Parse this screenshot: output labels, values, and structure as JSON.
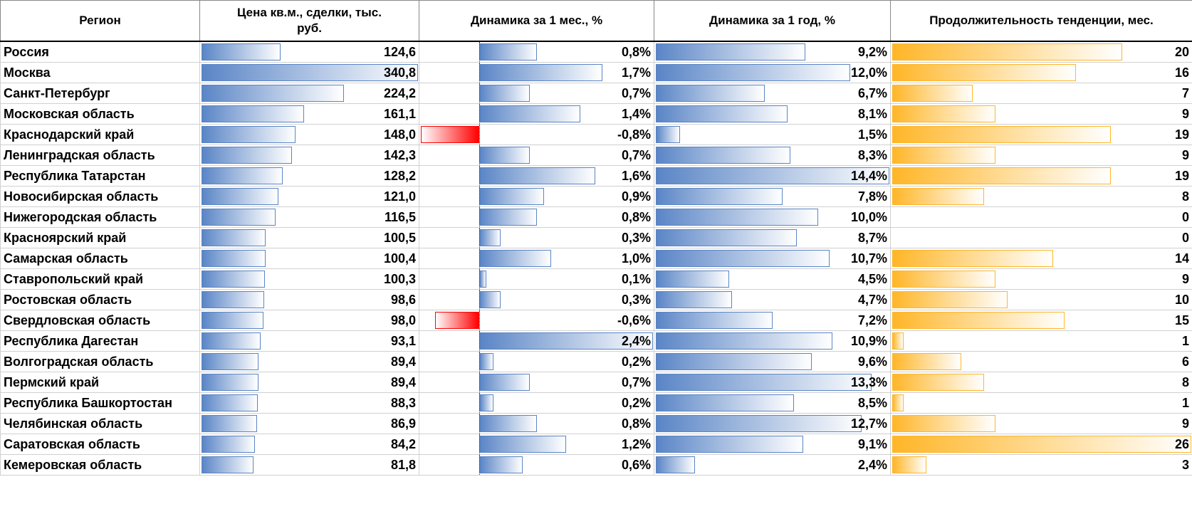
{
  "header": [
    "Регион",
    "Цена кв.м., сделки, тыс. руб.",
    "Динамика за 1 мес., %",
    "Динамика за 1 год, %",
    "Продолжительность тенденции, мес."
  ],
  "rows": [
    [
      "Россия",
      {
        "value": 124.6,
        "label": "124,6"
      },
      {
        "value": 0.8,
        "label": "0,8%"
      },
      {
        "value": 9.2,
        "label": "9,2%"
      },
      20
    ],
    [
      "Москва",
      {
        "value": 340.8,
        "label": "340,8"
      },
      {
        "value": 1.7,
        "label": "1,7%"
      },
      {
        "value": 12.0,
        "label": "12,0%"
      },
      16
    ],
    [
      "Санкт-Петербург",
      {
        "value": 224.2,
        "label": "224,2"
      },
      {
        "value": 0.7,
        "label": "0,7%"
      },
      {
        "value": 6.7,
        "label": "6,7%"
      },
      7
    ],
    [
      "Московская область",
      {
        "value": 161.1,
        "label": "161,1"
      },
      {
        "value": 1.4,
        "label": "1,4%"
      },
      {
        "value": 8.1,
        "label": "8,1%"
      },
      9
    ],
    [
      "Краснодарский край",
      {
        "value": 148.0,
        "label": "148,0"
      },
      {
        "value": -0.8,
        "label": "-0,8%"
      },
      {
        "value": 1.5,
        "label": "1,5%"
      },
      19
    ],
    [
      "Ленинградская область",
      {
        "value": 142.3,
        "label": "142,3"
      },
      {
        "value": 0.7,
        "label": "0,7%"
      },
      {
        "value": 8.3,
        "label": "8,3%"
      },
      9
    ],
    [
      "Республика Татарстан",
      {
        "value": 128.2,
        "label": "128,2"
      },
      {
        "value": 1.6,
        "label": "1,6%"
      },
      {
        "value": 14.4,
        "label": "14,4%"
      },
      19
    ],
    [
      "Новосибирская область",
      {
        "value": 121.0,
        "label": "121,0"
      },
      {
        "value": 0.9,
        "label": "0,9%"
      },
      {
        "value": 7.8,
        "label": "7,8%"
      },
      8
    ],
    [
      "Нижегородская область",
      {
        "value": 116.5,
        "label": "116,5"
      },
      {
        "value": 0.8,
        "label": "0,8%"
      },
      {
        "value": 10.0,
        "label": "10,0%"
      },
      0
    ],
    [
      "Красноярский край",
      {
        "value": 100.5,
        "label": "100,5"
      },
      {
        "value": 0.3,
        "label": "0,3%"
      },
      {
        "value": 8.7,
        "label": "8,7%"
      },
      0
    ],
    [
      "Самарская область",
      {
        "value": 100.4,
        "label": "100,4"
      },
      {
        "value": 1.0,
        "label": "1,0%"
      },
      {
        "value": 10.7,
        "label": "10,7%"
      },
      14
    ],
    [
      "Ставропольский край",
      {
        "value": 100.3,
        "label": "100,3"
      },
      {
        "value": 0.1,
        "label": "0,1%"
      },
      {
        "value": 4.5,
        "label": "4,5%"
      },
      9
    ],
    [
      "Ростовская область",
      {
        "value": 98.6,
        "label": "98,6"
      },
      {
        "value": 0.3,
        "label": "0,3%"
      },
      {
        "value": 4.7,
        "label": "4,7%"
      },
      10
    ],
    [
      "Свердловская область",
      {
        "value": 98.0,
        "label": "98,0"
      },
      {
        "value": -0.6,
        "label": "-0,6%"
      },
      {
        "value": 7.2,
        "label": "7,2%"
      },
      15
    ],
    [
      "Республика Дагестан",
      {
        "value": 93.1,
        "label": "93,1"
      },
      {
        "value": 2.4,
        "label": "2,4%"
      },
      {
        "value": 10.9,
        "label": "10,9%"
      },
      1
    ],
    [
      "Волгоградская область",
      {
        "value": 89.4,
        "label": "89,4"
      },
      {
        "value": 0.2,
        "label": "0,2%"
      },
      {
        "value": 9.6,
        "label": "9,6%"
      },
      6
    ],
    [
      "Пермский край",
      {
        "value": 89.4,
        "label": "89,4"
      },
      {
        "value": 0.7,
        "label": "0,7%"
      },
      {
        "value": 13.3,
        "label": "13,3%"
      },
      8
    ],
    [
      "Республика Башкортостан",
      {
        "value": 88.3,
        "label": "88,3"
      },
      {
        "value": 0.2,
        "label": "0,2%"
      },
      {
        "value": 8.5,
        "label": "8,5%"
      },
      1
    ],
    [
      "Челябинская область",
      {
        "value": 86.9,
        "label": "86,9"
      },
      {
        "value": 0.8,
        "label": "0,8%"
      },
      {
        "value": 12.7,
        "label": "12,7%"
      },
      9
    ],
    [
      "Саратовская область",
      {
        "value": 84.2,
        "label": "84,2"
      },
      {
        "value": 1.2,
        "label": "1,2%"
      },
      {
        "value": 9.1,
        "label": "9,1%"
      },
      26
    ],
    [
      "Кемеровская область",
      {
        "value": 81.8,
        "label": "81,8"
      },
      {
        "value": 0.6,
        "label": "0,6%"
      },
      {
        "value": 2.4,
        "label": "2,4%"
      },
      3
    ]
  ]
}
